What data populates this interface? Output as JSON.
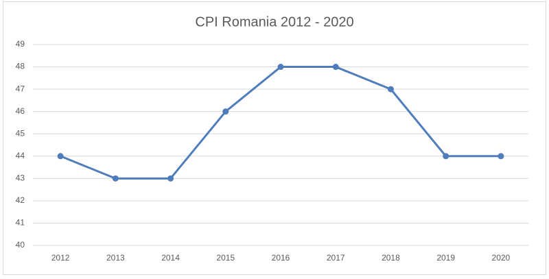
{
  "chart_data": {
    "type": "line",
    "title": "CPI Romania 2012 - 2020",
    "categories": [
      "2012",
      "2013",
      "2014",
      "2015",
      "2016",
      "2017",
      "2018",
      "2019",
      "2020"
    ],
    "values": [
      44,
      43,
      43,
      46,
      48,
      48,
      47,
      44,
      44
    ],
    "color": "#4f7dbb",
    "ylim": [
      40,
      49
    ],
    "yticks": [
      40,
      41,
      42,
      43,
      44,
      45,
      46,
      47,
      48,
      49
    ],
    "grid": true
  }
}
